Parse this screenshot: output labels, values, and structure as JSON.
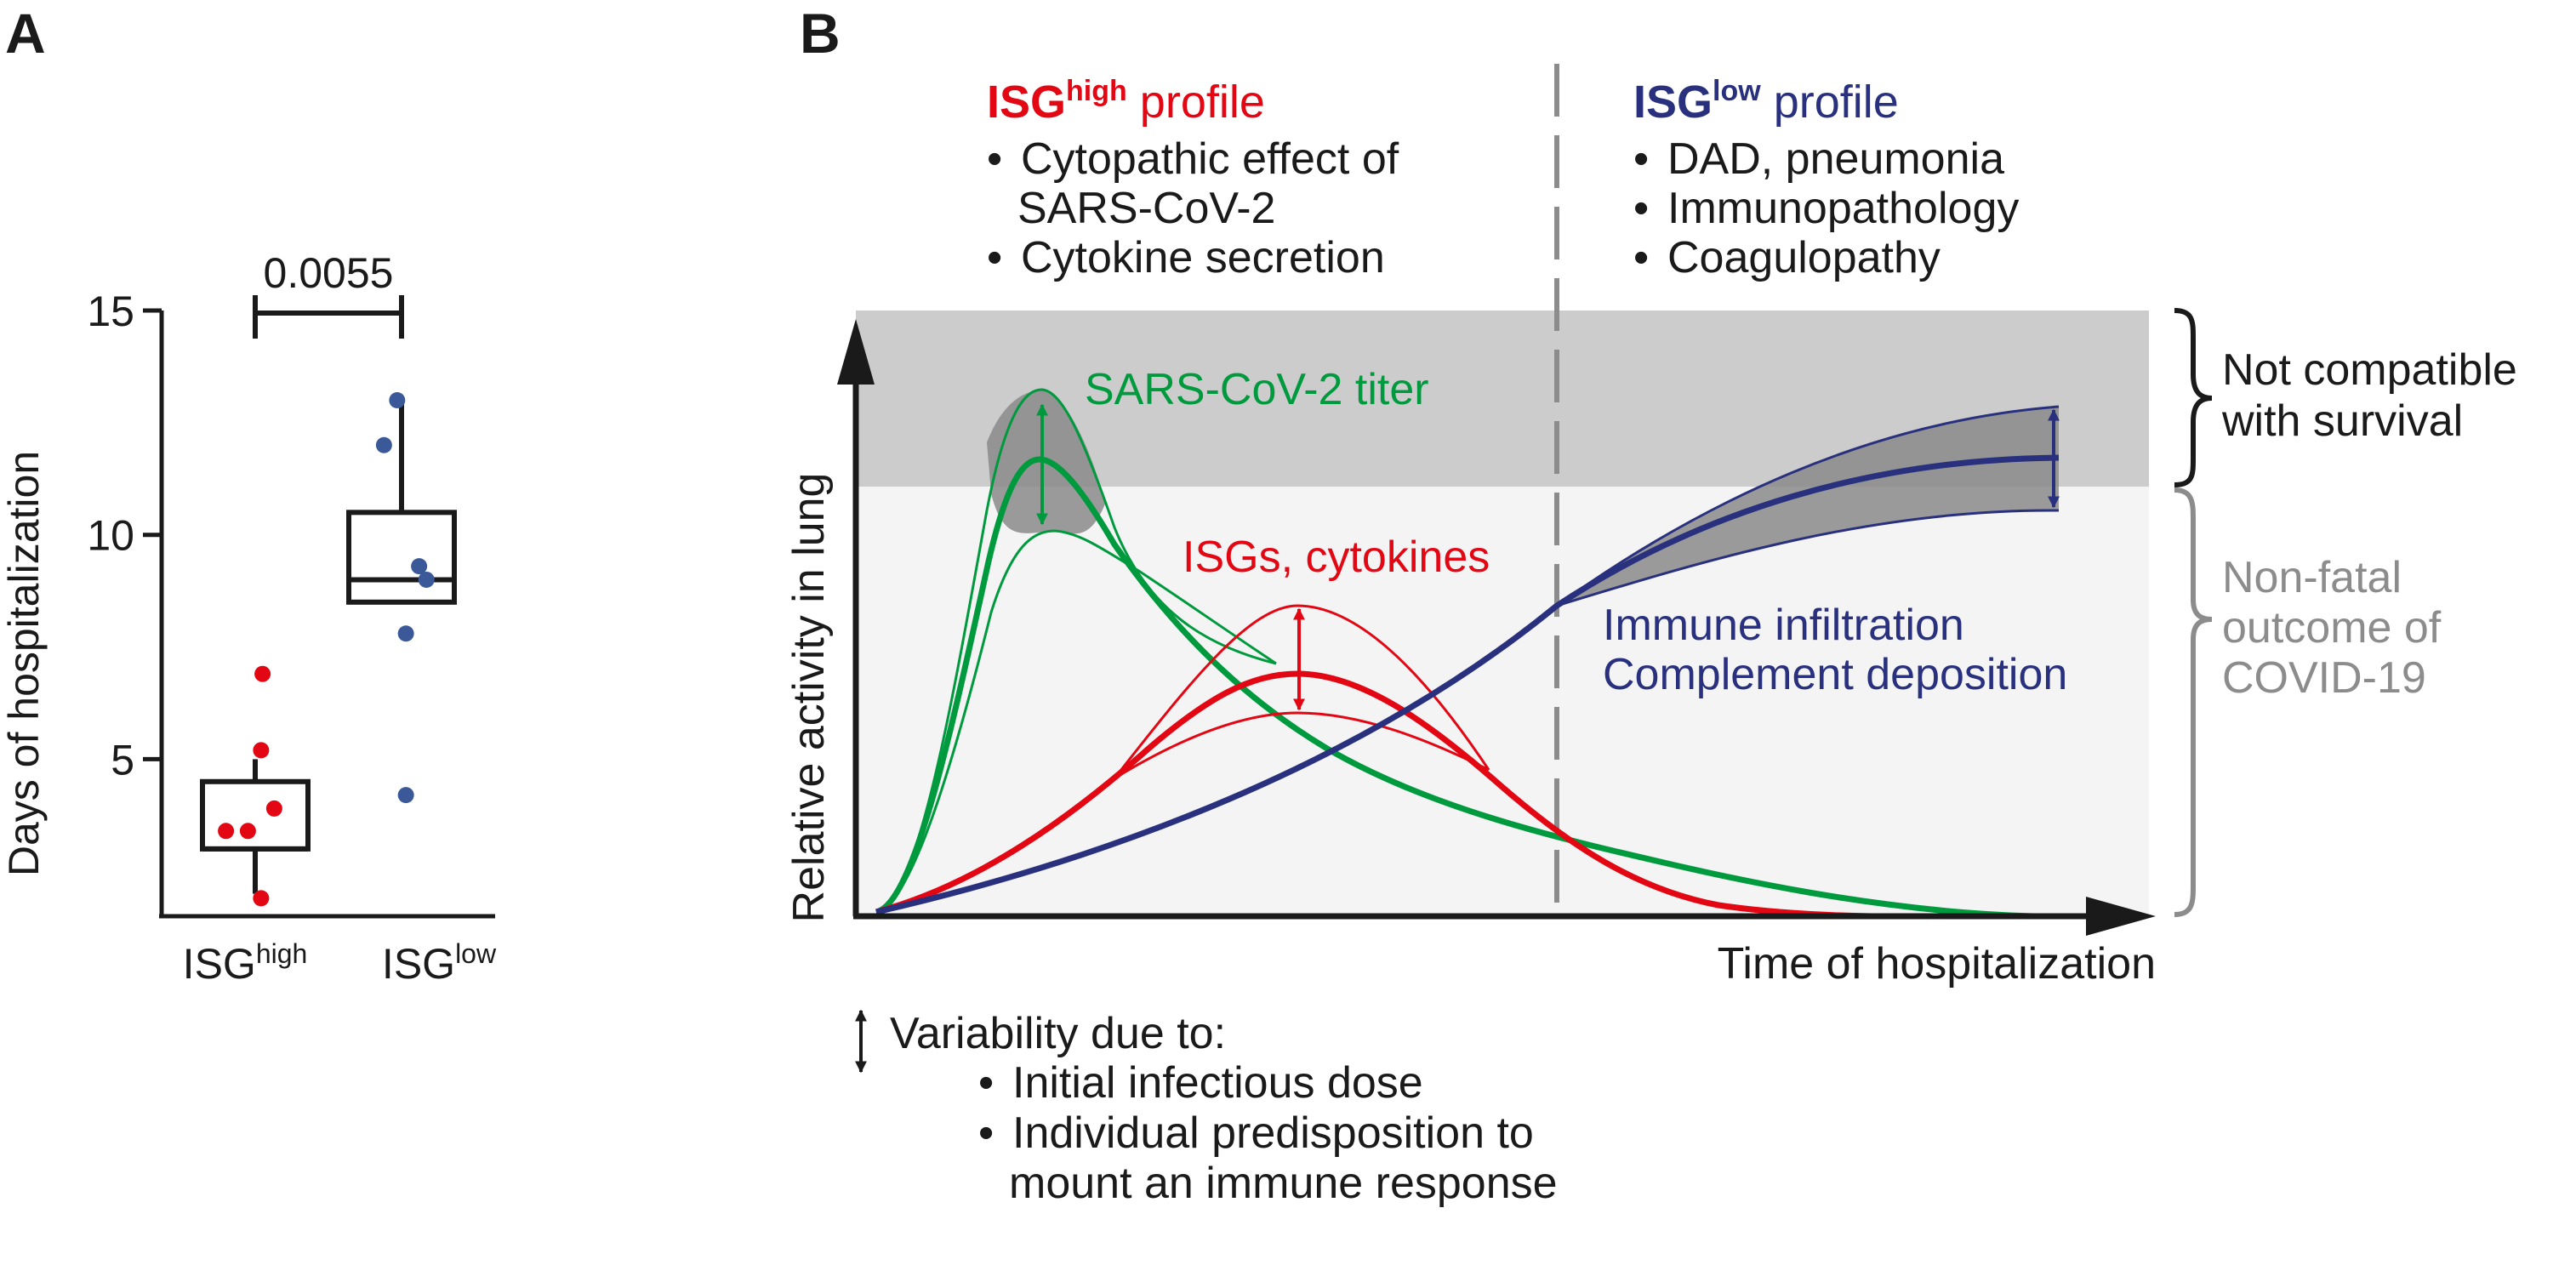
{
  "panels": {
    "a": {
      "label": "A",
      "pvalue": "0.0055",
      "chart_data": {
        "type": "box",
        "ylabel": "Days of hospitalization",
        "ylim": [
          1.5,
          15
        ],
        "yticks": [
          5,
          10,
          15
        ],
        "categories": [
          {
            "base": "ISG",
            "sup": "high"
          },
          {
            "base": "ISG",
            "sup": "low"
          }
        ],
        "groups": [
          {
            "color": "#e30613",
            "box": {
              "whisker_low": 2,
              "q1": 3,
              "median": 3,
              "q3": 4.5,
              "whisker_high": 5
            },
            "points": [
              {
                "y": 6.9,
                "jitter": 0.05
              },
              {
                "y": 5.2,
                "jitter": 0.04
              },
              {
                "y": 3.9,
                "jitter": 0.13
              },
              {
                "y": 3.4,
                "jitter": -0.2
              },
              {
                "y": 3.4,
                "jitter": -0.05
              },
              {
                "y": 1.9,
                "jitter": 0.04
              }
            ]
          },
          {
            "color": "#3b5998",
            "box": {
              "whisker_low": 8.5,
              "q1": 8.5,
              "median": 9,
              "q3": 10.5,
              "whisker_high": 13
            },
            "points": [
              {
                "y": 13,
                "jitter": -0.03
              },
              {
                "y": 12,
                "jitter": -0.12
              },
              {
                "y": 9.3,
                "jitter": 0.12
              },
              {
                "y": 9,
                "jitter": 0.17
              },
              {
                "y": 7.8,
                "jitter": 0.03
              },
              {
                "y": 4.2,
                "jitter": 0.03
              }
            ]
          }
        ]
      }
    },
    "b": {
      "label": "B",
      "high_profile": {
        "title_base": "ISG",
        "title_sup": "high",
        "title_rest": " profile",
        "items": [
          "Cytopathic effect of",
          "SARS-CoV-2",
          "Cytokine secretion"
        ]
      },
      "low_profile": {
        "title_base": "ISG",
        "title_sup": "low",
        "title_rest": " profile",
        "items": [
          "DAD, pneumonia",
          "Immunopathology",
          "Coagulopathy"
        ]
      },
      "ylabel": "Relative activity in lung",
      "xlabel": "Time of hospitalization",
      "curve_labels": {
        "virus": "SARS-CoV-2 titer",
        "isg": "ISGs, cytokines",
        "immune_line1": "Immune infiltration",
        "immune_line2": "Complement deposition"
      },
      "zones": {
        "fatal_line1": "Not compatible",
        "fatal_line2": "with survival",
        "nonfatal_line1": "Non-fatal",
        "nonfatal_line2": "outcome of",
        "nonfatal_line3": "COVID-19"
      },
      "legend": {
        "title": "Variability due to:",
        "items": [
          "Initial infectious dose",
          "Individual predisposition to",
          "mount an immune response"
        ]
      },
      "colors": {
        "green": "#009a3e",
        "red": "#e30613",
        "blue": "#29317f",
        "fatal_zone": "#cccccc",
        "nonfatal_zone": "#f4f4f4",
        "grey_text": "#8c8c8c"
      }
    }
  }
}
